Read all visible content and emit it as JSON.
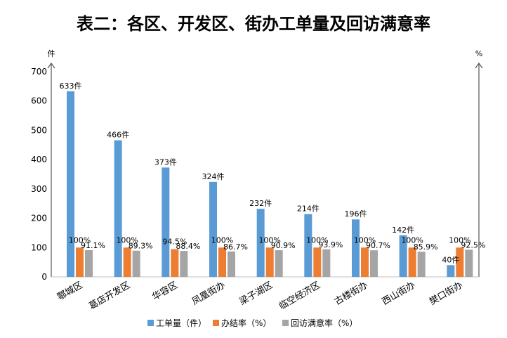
{
  "chart_data": {
    "type": "bar",
    "title": "表二：各区、开发区、街办工单量及回访满意率",
    "y_unit_left": "件",
    "y_unit_right": "%",
    "ylim": [
      0,
      700
    ],
    "yticks": [
      0,
      100,
      200,
      300,
      400,
      500,
      600,
      700
    ],
    "categories": [
      "鄠城区",
      "葛店开发区",
      "华容区",
      "凤凰街办",
      "梁子湖区",
      "临空经济区",
      "古楼街办",
      "西山街办",
      "樊口街办"
    ],
    "series": [
      {
        "name": "工单量（件）",
        "color": "#5B9BD5",
        "values": [
          633,
          466,
          373,
          324,
          232,
          214,
          196,
          142,
          40
        ],
        "labels": [
          "633件",
          "466件",
          "373件",
          "324件",
          "232件",
          "214件",
          "196件",
          "142件",
          "40件"
        ]
      },
      {
        "name": "办结率（%）",
        "color": "#ED7D31",
        "values": [
          100,
          100,
          94.5,
          100,
          100,
          100,
          100,
          100,
          100
        ],
        "labels": [
          "100%",
          "100%",
          "94.5%",
          "100%",
          "100%",
          "100%",
          "100%",
          "100%",
          "100%"
        ]
      },
      {
        "name": "回访满意率（%）",
        "color": "#A5A5A5",
        "values": [
          91.1,
          89.3,
          88.4,
          86.7,
          90.9,
          93.9,
          90.7,
          85.9,
          92.5
        ],
        "labels": [
          "91.1%",
          "89.3%",
          "88.4%",
          "86.7%",
          "90.9%",
          "93.9%",
          "90.7%",
          "85.9%",
          "92.5%"
        ]
      }
    ],
    "legend_position": "bottom",
    "grid": false
  }
}
